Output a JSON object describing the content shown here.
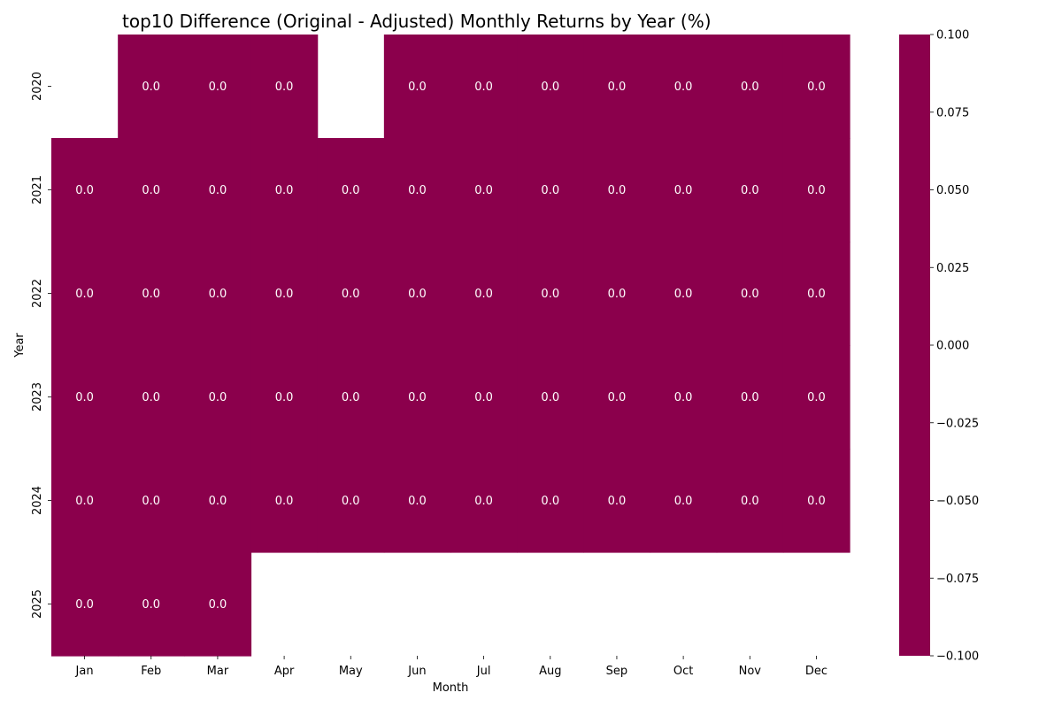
{
  "chart_data": {
    "type": "heatmap",
    "title": "top10 Difference (Original - Adjusted) Monthly Returns by Year (%)",
    "xlabel": "Month",
    "ylabel": "Year",
    "x_categories": [
      "Jan",
      "Feb",
      "Mar",
      "Apr",
      "May",
      "Jun",
      "Jul",
      "Aug",
      "Sep",
      "Oct",
      "Nov",
      "Dec"
    ],
    "y_categories": [
      "2020",
      "2021",
      "2022",
      "2023",
      "2024",
      "2025"
    ],
    "values": [
      [
        null,
        0.0,
        0.0,
        0.0,
        null,
        0.0,
        0.0,
        0.0,
        0.0,
        0.0,
        0.0,
        0.0
      ],
      [
        0.0,
        0.0,
        0.0,
        0.0,
        0.0,
        0.0,
        0.0,
        0.0,
        0.0,
        0.0,
        0.0,
        0.0
      ],
      [
        0.0,
        0.0,
        0.0,
        0.0,
        0.0,
        0.0,
        0.0,
        0.0,
        0.0,
        0.0,
        0.0,
        0.0
      ],
      [
        0.0,
        0.0,
        0.0,
        0.0,
        0.0,
        0.0,
        0.0,
        0.0,
        0.0,
        0.0,
        0.0,
        0.0
      ],
      [
        0.0,
        0.0,
        0.0,
        0.0,
        0.0,
        0.0,
        0.0,
        0.0,
        0.0,
        0.0,
        0.0,
        0.0
      ],
      [
        0.0,
        0.0,
        0.0,
        null,
        null,
        null,
        null,
        null,
        null,
        null,
        null,
        null
      ]
    ],
    "value_format": "0.0",
    "cell_color": "#8b004c",
    "colorbar": {
      "range": [
        -0.1,
        0.1
      ],
      "ticks": [
        0.1,
        0.075,
        0.05,
        0.025,
        0.0,
        -0.025,
        -0.05,
        -0.075,
        -0.1
      ],
      "tick_labels": [
        "0.100",
        "0.075",
        "0.050",
        "0.025",
        "0.000",
        "−0.025",
        "−0.050",
        "−0.075",
        "−0.100"
      ]
    },
    "grid": false,
    "legend": "colorbar-right"
  }
}
